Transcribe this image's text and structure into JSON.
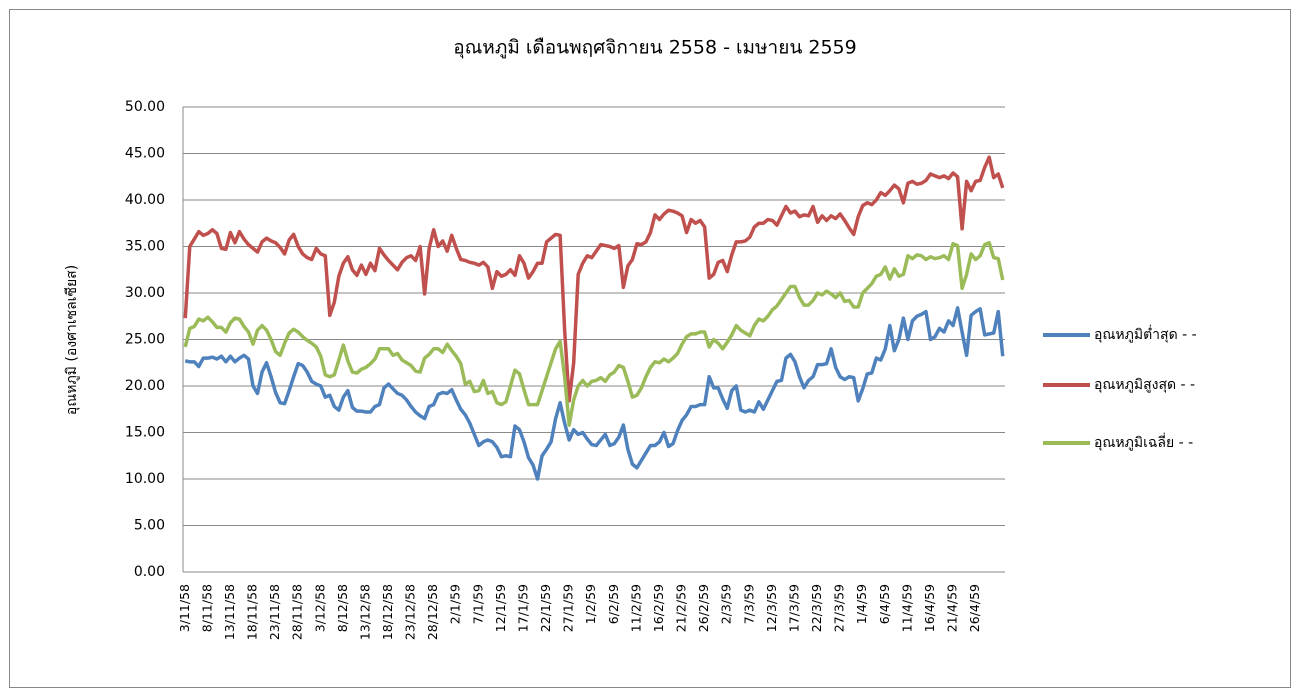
{
  "chart_data": {
    "type": "line",
    "title": "อุณหภูมิ เดือนพฤศจิกายน 2558 - เมษายน 2559",
    "y_label": "อุณหภูมิ (องศาเซลเซียส)",
    "ylim": [
      0,
      50
    ],
    "yticks": [
      {
        "value": 0,
        "label": "0.00"
      },
      {
        "value": 5,
        "label": "5.00"
      },
      {
        "value": 10,
        "label": "10.00"
      },
      {
        "value": 15,
        "label": "15.00"
      },
      {
        "value": 20,
        "label": "20.00"
      },
      {
        "value": 25,
        "label": "25.00"
      },
      {
        "value": 30,
        "label": "30.00"
      },
      {
        "value": 35,
        "label": "35.00"
      },
      {
        "value": 40,
        "label": "40.00"
      },
      {
        "value": 45,
        "label": "45.00"
      },
      {
        "value": 50,
        "label": "50.00"
      }
    ],
    "grid": true,
    "legend": "right",
    "categories": [
      "3/11/58",
      null,
      null,
      null,
      null,
      "8/11/58",
      null,
      null,
      null,
      null,
      "13/11/58",
      null,
      null,
      null,
      null,
      "18/11/58",
      null,
      null,
      null,
      null,
      "23/11/58",
      null,
      null,
      null,
      null,
      "28/11/58",
      null,
      null,
      null,
      null,
      "3/12/58",
      null,
      null,
      null,
      null,
      "8/12/58",
      null,
      null,
      null,
      null,
      "13/12/58",
      null,
      null,
      null,
      null,
      "18/12/58",
      null,
      null,
      null,
      null,
      "23/12/58",
      null,
      null,
      null,
      null,
      "28/12/58",
      null,
      null,
      null,
      null,
      "2/1/59",
      null,
      null,
      null,
      null,
      "7/1/59",
      null,
      null,
      null,
      null,
      "12/1/59",
      null,
      null,
      null,
      null,
      "17/1/59",
      null,
      null,
      null,
      null,
      "22/1/59",
      null,
      null,
      null,
      null,
      "27/1/59",
      null,
      null,
      null,
      null,
      "1/2/59",
      null,
      null,
      null,
      null,
      "6/2/59",
      null,
      null,
      null,
      null,
      "11/2/59",
      null,
      null,
      null,
      null,
      "16/2/59",
      null,
      null,
      null,
      null,
      "21/2/59",
      null,
      null,
      null,
      null,
      "26/2/59",
      null,
      null,
      null,
      null,
      "2/3/59",
      null,
      null,
      null,
      null,
      "7/3/59",
      null,
      null,
      null,
      null,
      "12/3/59",
      null,
      null,
      null,
      null,
      "17/3/59",
      null,
      null,
      null,
      null,
      "22/3/59",
      null,
      null,
      null,
      null,
      "27/3/59",
      null,
      null,
      null,
      null,
      "1/4/59",
      null,
      null,
      null,
      null,
      "6/4/59",
      null,
      null,
      null,
      null,
      "11/4/59",
      null,
      null,
      null,
      null,
      "16/4/59",
      null,
      null,
      null,
      null,
      "21/4/59",
      null,
      null,
      null,
      null,
      "26/4/59",
      null,
      null,
      null,
      null,
      null,
      null
    ],
    "series": [
      {
        "name": "อุณหภูมิต่ำสุด - -",
        "color": "#4f81bd",
        "values": [
          22.7,
          22.6,
          22.6,
          22.1,
          23.0,
          23.0,
          23.1,
          22.9,
          23.2,
          22.6,
          23.2,
          22.6,
          23.0,
          23.3,
          22.9,
          20.0,
          19.2,
          21.5,
          22.5,
          21.0,
          19.3,
          18.2,
          18.1,
          19.5,
          21.0,
          22.4,
          22.2,
          21.5,
          20.5,
          20.2,
          20.0,
          18.8,
          19.0,
          17.8,
          17.4,
          18.8,
          19.5,
          17.7,
          17.3,
          17.3,
          17.2,
          17.2,
          17.8,
          18.0,
          19.8,
          20.2,
          19.7,
          19.2,
          19.0,
          18.5,
          17.8,
          17.2,
          16.8,
          16.5,
          17.8,
          18.0,
          19.1,
          19.3,
          19.2,
          19.6,
          18.5,
          17.5,
          16.9,
          16.0,
          14.8,
          13.6,
          14.0,
          14.2,
          14.0,
          13.4,
          12.4,
          12.5,
          12.4,
          15.7,
          15.3,
          14.0,
          12.3,
          11.5,
          10.0,
          12.5,
          13.2,
          14.0,
          16.5,
          18.2,
          16.0,
          14.2,
          15.3,
          14.8,
          15.0,
          14.3,
          13.7,
          13.6,
          14.2,
          14.8,
          13.6,
          13.8,
          14.5,
          15.8,
          13.2,
          11.6,
          11.2,
          12.0,
          12.8,
          13.6,
          13.6,
          14.0,
          15.0,
          13.5,
          13.8,
          15.2,
          16.3,
          16.9,
          17.8,
          17.8,
          18.0,
          18.0,
          21.0,
          19.8,
          19.8,
          18.6,
          17.6,
          19.5,
          20.0,
          17.4,
          17.2,
          17.4,
          17.2,
          18.3,
          17.5,
          18.5,
          19.5,
          20.5,
          20.6,
          23.0,
          23.4,
          22.6,
          21.0,
          19.8,
          20.6,
          21.0,
          22.3,
          22.3,
          22.4,
          24.0,
          22.0,
          21.0,
          20.7,
          21.0,
          20.9,
          18.4,
          19.7,
          21.3,
          21.4,
          23.0,
          22.8,
          24.0,
          26.5,
          23.8,
          25.0,
          27.3,
          25.0,
          27.0,
          27.5,
          27.7,
          28.0,
          25.0,
          25.3,
          26.2,
          25.8,
          27.0,
          26.5,
          28.4,
          25.8,
          23.3,
          27.6,
          28.0,
          28.3,
          25.5,
          25.6,
          25.7,
          28.0,
          23.2
        ]
      },
      {
        "name": "อุณหภูมิสูงสุด - -",
        "color": "#c0504d",
        "values": [
          27.3,
          35.0,
          35.8,
          36.6,
          36.2,
          36.4,
          36.8,
          36.4,
          34.8,
          34.7,
          36.5,
          35.4,
          36.6,
          35.8,
          35.2,
          34.8,
          34.4,
          35.5,
          35.9,
          35.6,
          35.4,
          34.9,
          34.2,
          35.7,
          36.3,
          35.0,
          34.2,
          33.8,
          33.6,
          34.8,
          34.2,
          34.0,
          27.6,
          29.0,
          31.8,
          33.2,
          33.9,
          32.5,
          31.9,
          33.0,
          32.0,
          33.2,
          32.4,
          34.8,
          34.1,
          33.5,
          33.0,
          32.5,
          33.3,
          33.8,
          34.0,
          33.5,
          35.0,
          29.9,
          34.8,
          36.8,
          35.0,
          35.6,
          34.5,
          36.2,
          34.8,
          33.6,
          33.5,
          33.3,
          33.2,
          33.0,
          33.3,
          32.8,
          30.5,
          32.3,
          31.8,
          32.0,
          32.5,
          31.9,
          34.0,
          33.2,
          31.6,
          32.3,
          33.2,
          33.2,
          35.5,
          35.9,
          36.3,
          36.2,
          26.0,
          18.4,
          22.5,
          32.0,
          33.2,
          34.0,
          33.8,
          34.5,
          35.2,
          35.1,
          35.0,
          34.8,
          35.1,
          30.6,
          32.9,
          33.6,
          35.3,
          35.2,
          35.5,
          36.5,
          38.4,
          37.9,
          38.5,
          38.9,
          38.8,
          38.6,
          38.3,
          36.5,
          37.9,
          37.5,
          37.8,
          37.1,
          31.6,
          32.0,
          33.3,
          33.5,
          32.3,
          34.1,
          35.5,
          35.5,
          35.6,
          36.0,
          37.1,
          37.5,
          37.5,
          37.9,
          37.8,
          37.3,
          38.3,
          39.3,
          38.6,
          38.8,
          38.2,
          38.4,
          38.3,
          39.3,
          37.6,
          38.3,
          37.8,
          38.3,
          38.0,
          38.5,
          37.8,
          37.0,
          36.3,
          38.2,
          39.4,
          39.7,
          39.5,
          40.0,
          40.8,
          40.5,
          41.0,
          41.6,
          41.2,
          39.7,
          41.8,
          42.0,
          41.7,
          41.8,
          42.1,
          42.8,
          42.6,
          42.4,
          42.6,
          42.3,
          42.9,
          42.5,
          36.9,
          42.0,
          41.0,
          42.0,
          42.1,
          43.5,
          44.6,
          42.4,
          42.8,
          41.3
        ]
      },
      {
        "name": "อุณหภูมิเฉลี่ย - -",
        "color": "#9bbb59",
        "values": [
          24.2,
          26.2,
          26.4,
          27.2,
          27.0,
          27.4,
          26.9,
          26.3,
          26.3,
          25.8,
          26.8,
          27.3,
          27.2,
          26.4,
          25.8,
          24.5,
          26.0,
          26.5,
          26.0,
          25.0,
          23.7,
          23.3,
          24.6,
          25.7,
          26.1,
          25.8,
          25.3,
          24.9,
          24.6,
          24.2,
          23.2,
          21.2,
          21.0,
          21.2,
          22.8,
          24.4,
          22.7,
          21.5,
          21.4,
          21.8,
          22.0,
          22.4,
          22.9,
          24.0,
          24.0,
          24.0,
          23.3,
          23.5,
          22.8,
          22.5,
          22.2,
          21.6,
          21.5,
          23.0,
          23.4,
          24.0,
          24.0,
          23.6,
          24.5,
          23.8,
          23.2,
          22.4,
          20.2,
          20.5,
          19.4,
          19.5,
          20.6,
          19.2,
          19.4,
          18.2,
          18.0,
          18.3,
          20.0,
          21.7,
          21.3,
          19.6,
          18.0,
          18.0,
          18.0,
          19.5,
          21.0,
          22.5,
          24.0,
          24.8,
          21.0,
          15.8,
          18.5,
          20.0,
          20.6,
          20.0,
          20.5,
          20.6,
          20.9,
          20.5,
          21.2,
          21.5,
          22.2,
          22.0,
          20.5,
          18.8,
          19.0,
          19.8,
          21.0,
          22.0,
          22.6,
          22.5,
          22.9,
          22.6,
          23.0,
          23.5,
          24.5,
          25.3,
          25.6,
          25.6,
          25.8,
          25.8,
          24.2,
          25.0,
          24.6,
          24.0,
          24.7,
          25.5,
          26.5,
          26.0,
          25.7,
          25.4,
          26.5,
          27.2,
          27.0,
          27.5,
          28.2,
          28.6,
          29.3,
          30.0,
          30.7,
          30.7,
          29.5,
          28.7,
          28.7,
          29.2,
          30.0,
          29.8,
          30.2,
          29.9,
          29.5,
          30.0,
          29.1,
          29.2,
          28.5,
          28.5,
          30.0,
          30.5,
          31.0,
          31.8,
          32.0,
          32.8,
          31.5,
          32.6,
          31.8,
          32.0,
          34.0,
          33.7,
          34.1,
          34.0,
          33.6,
          33.9,
          33.7,
          33.8,
          34.0,
          33.6,
          35.3,
          35.1,
          30.5,
          32.0,
          34.2,
          33.6,
          34.0,
          35.2,
          35.4,
          33.8,
          33.7,
          31.4
        ]
      }
    ]
  }
}
